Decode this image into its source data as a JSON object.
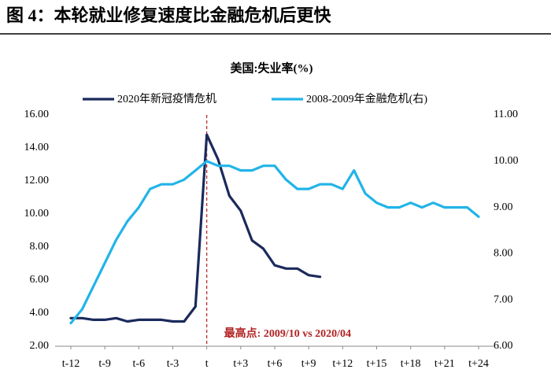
{
  "header": {
    "title": "图 4：本轮就业修复速度比金融危机后更快"
  },
  "chart_data": {
    "type": "line",
    "title": "美国:失业率(%)",
    "annotation": "最高点: 2009/10 vs 2020/04",
    "categories": [
      "t-12",
      null,
      null,
      "t-9",
      null,
      null,
      "t-6",
      null,
      null,
      "t-3",
      null,
      null,
      "t",
      null,
      null,
      "t+3",
      null,
      null,
      "t+6",
      null,
      null,
      "t+9",
      null,
      null,
      "t+12",
      null,
      null,
      "t+15",
      null,
      null,
      "t+18",
      null,
      null,
      "t+21",
      null,
      null,
      "t+24"
    ],
    "series": [
      {
        "name": "2020年新冠疫情危机",
        "color": "#1b2a5c",
        "axis": "y",
        "values": [
          3.7,
          3.7,
          3.6,
          3.6,
          3.7,
          3.5,
          3.6,
          3.6,
          3.6,
          3.5,
          3.5,
          4.4,
          14.8,
          13.3,
          11.1,
          10.2,
          8.4,
          7.9,
          6.9,
          6.7,
          6.7,
          6.3,
          6.2,
          null,
          null,
          null,
          null,
          null,
          null,
          null,
          null,
          null,
          null,
          null,
          null,
          null,
          null
        ]
      },
      {
        "name": "2008-2009年金融危机(右)",
        "color": "#22b4e8",
        "axis": "y2",
        "values": [
          6.5,
          6.8,
          7.3,
          7.8,
          8.3,
          8.7,
          9.0,
          9.4,
          9.5,
          9.5,
          9.6,
          9.8,
          10.0,
          9.9,
          9.9,
          9.8,
          9.8,
          9.9,
          9.9,
          9.6,
          9.4,
          9.4,
          9.5,
          9.5,
          9.4,
          9.8,
          9.3,
          9.1,
          9.0,
          9.0,
          9.1,
          9.0,
          9.1,
          9.0,
          9.0,
          9.0,
          8.8
        ]
      }
    ],
    "ylim": [
      2,
      16
    ],
    "yticks": [
      {
        "value": 2,
        "label": "2.00"
      },
      {
        "value": 4,
        "label": "4.00"
      },
      {
        "value": 6,
        "label": "6.00"
      },
      {
        "value": 8,
        "label": "8.00"
      },
      {
        "value": 10,
        "label": "10.00"
      },
      {
        "value": 12,
        "label": "12.00"
      },
      {
        "value": 14,
        "label": "14.00"
      },
      {
        "value": 16,
        "label": "16.00"
      }
    ],
    "y2lim": [
      6,
      11
    ],
    "y2ticks": [
      {
        "value": 6,
        "label": "6.00"
      },
      {
        "value": 7,
        "label": "7.00"
      },
      {
        "value": 8,
        "label": "8.00"
      },
      {
        "value": 9,
        "label": "9.00"
      },
      {
        "value": 10,
        "label": "10.00"
      },
      {
        "value": 11,
        "label": "11.00"
      }
    ]
  }
}
